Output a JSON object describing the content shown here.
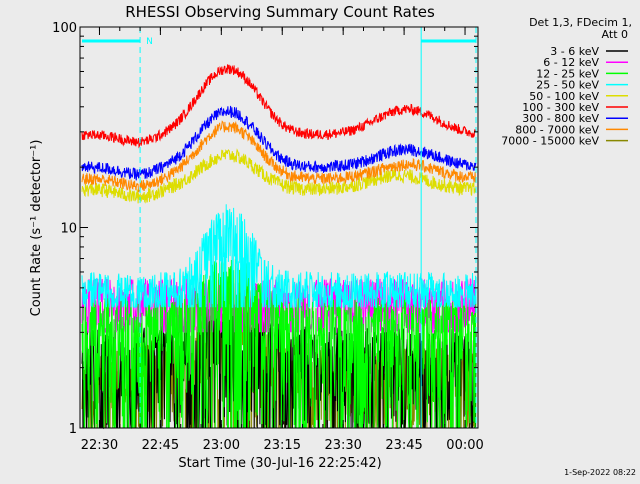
{
  "chart_data": {
    "type": "line",
    "title": "RHESSI Observing Summary Count Rates",
    "xlabel": "Start Time (30-Jul-16 22:25:42)",
    "ylabel": "Count Rate (s⁻¹ detector⁻¹)",
    "yscale": "log",
    "ylim": [
      1,
      100
    ],
    "xlim_minutes": [
      0,
      97
    ],
    "x_ticks": [
      "22:30",
      "22:45",
      "23:00",
      "23:15",
      "23:30",
      "23:45",
      "00:00"
    ],
    "y_ticks": [
      "1",
      "10",
      "100"
    ],
    "grid": false,
    "legend_position": "top-right",
    "legend_header": [
      "Det 1,3, FDecim 1,",
      "Att 0"
    ],
    "series": [
      {
        "name": "3 - 6 keV",
        "color": "#000000",
        "shape": "burst",
        "base": 2.2,
        "peak": 3.2,
        "peak_min": 36,
        "width": 10,
        "noise": 0.45,
        "floor": 1
      },
      {
        "name": "6 - 12 keV",
        "color": "#ff00ff",
        "shape": "band",
        "base": 4.3,
        "peak": 0,
        "peak_min": 36,
        "width": 8,
        "noise": 0.3,
        "floor": 3
      },
      {
        "name": "12 - 25 keV",
        "color": "#00ff00",
        "shape": "band",
        "base": 3.3,
        "peak": 5.5,
        "peak_min": 36,
        "width": 8,
        "noise": 0.35,
        "floor": 1
      },
      {
        "name": "25 - 50 keV",
        "color": "#00ffff",
        "shape": "band",
        "base": 4.8,
        "peak": 10.5,
        "peak_min": 36,
        "width": 7,
        "noise": 0.25,
        "floor": 4
      },
      {
        "name": "50 - 100 keV",
        "color": "#dddd00",
        "shape": "smooth",
        "base": 15.5,
        "peak": 23,
        "peak_min": 36,
        "width": 9,
        "second_peak": 18.5,
        "second_min": 78,
        "noise": 0.08
      },
      {
        "name": "100 - 300 keV",
        "color": "#ff0000",
        "shape": "smooth",
        "base": 29,
        "peak": 62,
        "peak_min": 36,
        "width": 9,
        "second_peak": 40,
        "second_min": 80,
        "noise": 0.06
      },
      {
        "name": "300 - 800 keV",
        "color": "#0000ff",
        "shape": "smooth",
        "base": 20,
        "peak": 38,
        "peak_min": 36,
        "width": 9,
        "second_peak": 25,
        "second_min": 80,
        "noise": 0.07
      },
      {
        "name": "800 - 7000 keV",
        "color": "#ff8800",
        "shape": "smooth",
        "base": 17.5,
        "peak": 32,
        "peak_min": 36,
        "width": 9,
        "second_peak": 21,
        "second_min": 80,
        "noise": 0.07
      },
      {
        "name": "7000 - 15000 keV",
        "color": "#888800",
        "shape": "burst",
        "base": 1.8,
        "peak": 2.9,
        "peak_min": 36,
        "width": 14,
        "noise": 0.4,
        "floor": 1
      }
    ],
    "annotations": [
      {
        "label": "N",
        "x_min": 14.3,
        "color": "#00ffff"
      }
    ],
    "flag_bars": [
      {
        "start_min": 0,
        "end_min": 14.3
      },
      {
        "start_min": 83.5,
        "end_min": 97
      }
    ],
    "dashed_lines_min": [
      14.3,
      97
    ],
    "solid_lines_min": [
      83.5
    ],
    "footer_date": "1-Sep-2022 08:22"
  }
}
